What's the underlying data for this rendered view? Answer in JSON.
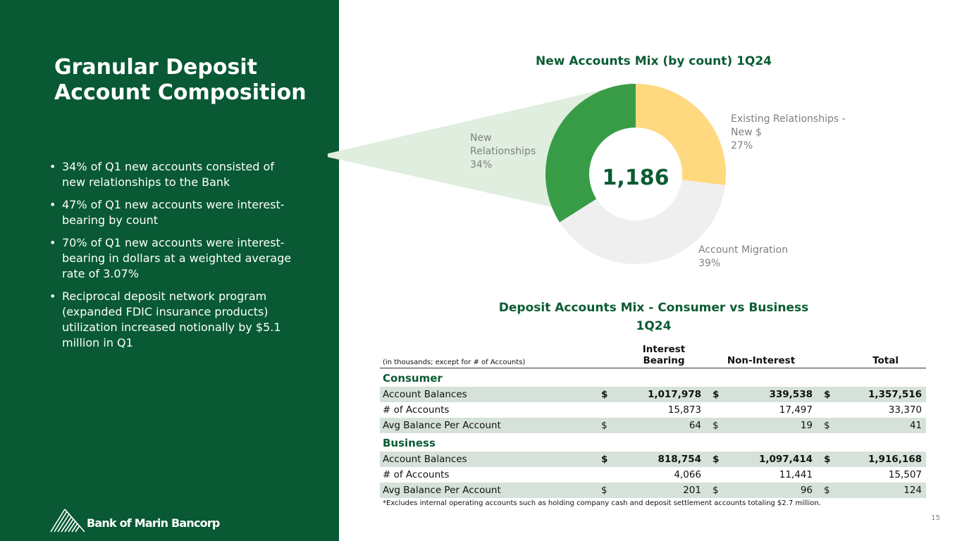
{
  "slide": {
    "title_lines": [
      "Granular Deposit",
      "Account Composition"
    ],
    "bullets": [
      "34% of Q1 new accounts consisted of new relationships to the Bank",
      "47% of Q1 new accounts were interest-bearing by count",
      "70% of Q1 new accounts were interest-bearing in dollars at a weighted average rate of 3.07%",
      "Reciprocal deposit network program (expanded FDIC insurance products) utilization increased notionally by $5.1 million in Q1"
    ],
    "logo_text": "Bank of Marin Bancorp",
    "page_number": "15"
  },
  "colors": {
    "panel_green": "#085934",
    "title_green": "#0b5c33",
    "existing_yellow": "#ffd97f",
    "migration_gray": "#efefef",
    "new_green": "#389c47",
    "callout_green": "#dfeede",
    "row_shade": "#d6e2d9"
  },
  "chart_data": [
    {
      "type": "pie",
      "title": "New Accounts Mix (by count) 1Q24",
      "center_value": "1,186",
      "slices": [
        {
          "label_lines": [
            "Existing Relationships -",
            "New $"
          ],
          "value": 27,
          "value_label": "27%",
          "color": "#ffd97f"
        },
        {
          "label_lines": [
            "Account Migration"
          ],
          "value": 39,
          "value_label": "39%",
          "color": "#efefef"
        },
        {
          "label_lines": [
            "New",
            "Relationships"
          ],
          "value": 34,
          "value_label": "34%",
          "color": "#389c47"
        }
      ]
    },
    {
      "type": "table",
      "title_lines": [
        "Deposit Accounts Mix  - Consumer vs Business",
        "1Q24"
      ],
      "units_note": "(in thousands; except for # of Accounts)",
      "columns": [
        "Interest Bearing",
        "Non-Interest",
        "Total"
      ],
      "sections": [
        {
          "name": "Consumer",
          "rows": [
            {
              "label": "Account Balances",
              "currency": [
                "$",
                "$",
                "$"
              ],
              "values": [
                "1,017,978",
                "339,538",
                "1,357,516"
              ],
              "shade": true,
              "bold": true
            },
            {
              "label": "# of Accounts",
              "currency": [
                "",
                "",
                ""
              ],
              "values": [
                "15,873",
                "17,497",
                "33,370"
              ],
              "shade": false,
              "bold": false
            },
            {
              "label": "Avg Balance Per Account",
              "currency": [
                "$",
                "$",
                "$"
              ],
              "values": [
                "64",
                "19",
                "41"
              ],
              "shade": true,
              "bold": false
            }
          ]
        },
        {
          "name": "Business",
          "rows": [
            {
              "label": "Account Balances",
              "currency": [
                "$",
                "$",
                "$"
              ],
              "values": [
                "818,754",
                "1,097,414",
                "1,916,168"
              ],
              "shade": true,
              "bold": true
            },
            {
              "label": "# of Accounts",
              "currency": [
                "",
                "",
                ""
              ],
              "values": [
                "4,066",
                "11,441",
                "15,507"
              ],
              "shade": false,
              "bold": false
            },
            {
              "label": "Avg Balance Per Account",
              "currency": [
                "$",
                "$",
                "$"
              ],
              "values": [
                "201",
                "96",
                "124"
              ],
              "shade": true,
              "bold": false
            }
          ]
        }
      ],
      "footnote": "*Excludes internal operating accounts such as holding company cash and deposit settlement accounts totaling $2.7 million."
    }
  ]
}
